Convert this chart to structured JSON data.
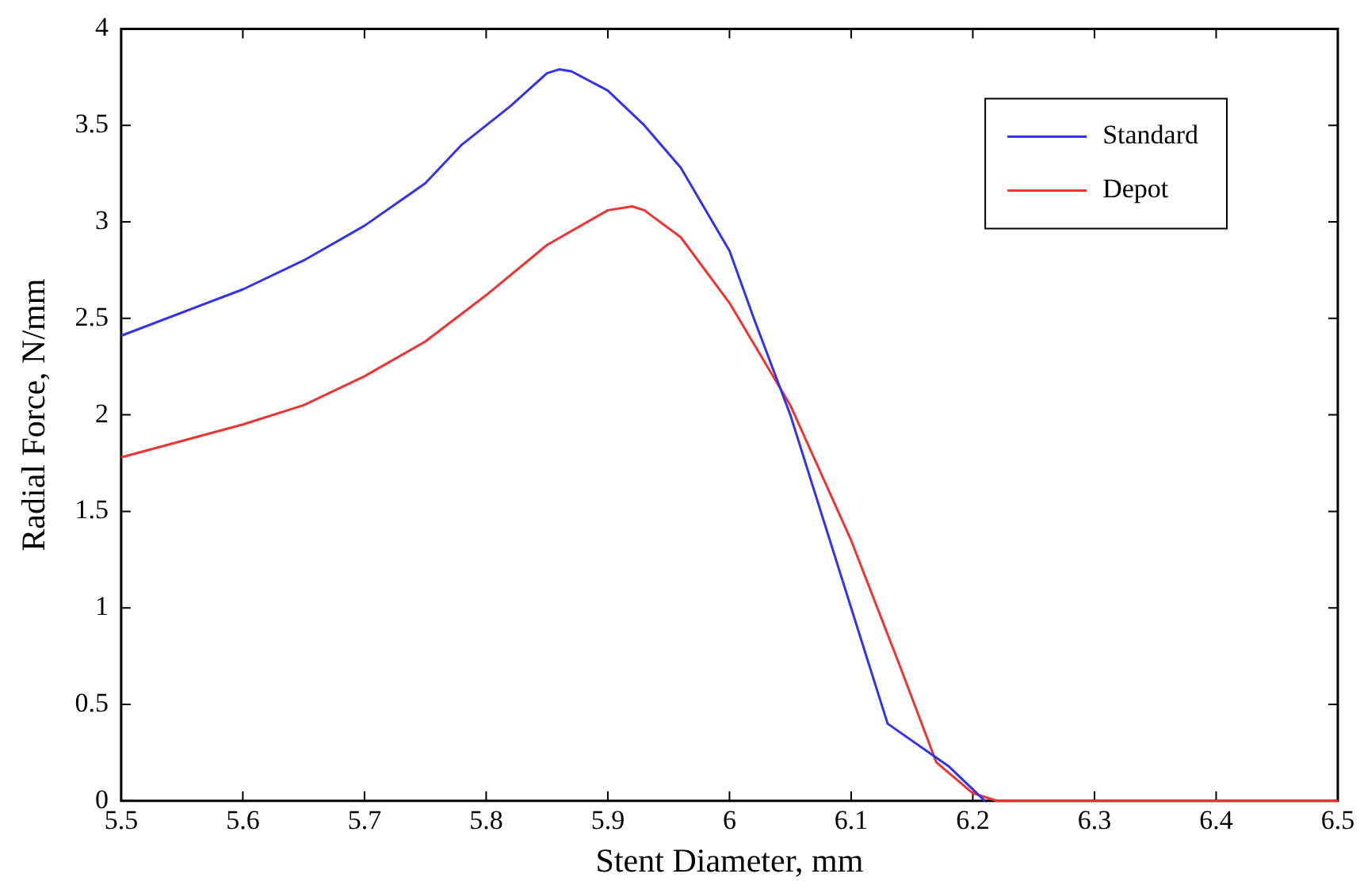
{
  "chart_data": {
    "type": "line",
    "xlabel": "Stent Diameter, mm",
    "ylabel": "Radial Force, N/mm",
    "xlim": [
      5.5,
      6.5
    ],
    "xticks": [
      5.5,
      5.6,
      5.7,
      5.8,
      5.9,
      6,
      6.1,
      6.2,
      6.3,
      6.4,
      6.5
    ],
    "ylim": [
      0,
      4
    ],
    "yticks": [
      0,
      0.5,
      1,
      1.5,
      2,
      2.5,
      3,
      3.5,
      4
    ],
    "grid": false,
    "legend": "top right",
    "marker": "none",
    "line_style": "solid",
    "series": [
      {
        "name": "Standard",
        "color": "#3333ee",
        "x": [
          5.5,
          5.6,
          5.65,
          5.7,
          5.75,
          5.78,
          5.82,
          5.85,
          5.86,
          5.87,
          5.9,
          5.93,
          5.96,
          6.0,
          6.02,
          6.05,
          6.1,
          6.13,
          6.18,
          6.21
        ],
        "values": [
          2.41,
          2.65,
          2.8,
          2.98,
          3.2,
          3.4,
          3.6,
          3.77,
          3.79,
          3.78,
          3.68,
          3.5,
          3.28,
          2.85,
          2.5,
          2.0,
          1.0,
          0.4,
          0.18,
          0
        ]
      },
      {
        "name": "Depot",
        "color": "#ee3333",
        "x": [
          5.5,
          5.6,
          5.65,
          5.7,
          5.75,
          5.8,
          5.85,
          5.9,
          5.92,
          5.93,
          5.96,
          6.0,
          6.05,
          6.1,
          6.14,
          6.17,
          6.2,
          6.22,
          6.5
        ],
        "values": [
          1.78,
          1.95,
          2.05,
          2.2,
          2.38,
          2.62,
          2.88,
          3.06,
          3.08,
          3.06,
          2.92,
          2.58,
          2.05,
          1.35,
          0.7,
          0.2,
          0.04,
          0,
          0
        ]
      }
    ]
  }
}
